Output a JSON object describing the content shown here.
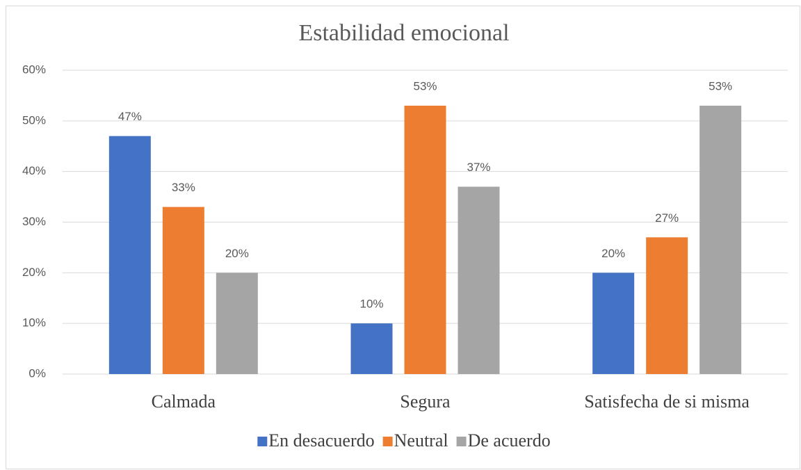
{
  "chart_data": {
    "type": "bar",
    "title": "Estabilidad emocional",
    "categories": [
      "Calmada",
      "Segura",
      "Satisfecha de si misma"
    ],
    "series": [
      {
        "name": "En desacuerdo",
        "color": "#4472c4",
        "values": [
          47,
          10,
          20
        ],
        "value_labels": [
          "47%",
          "10%",
          "20%"
        ]
      },
      {
        "name": "Neutral",
        "color": "#ed7d31",
        "values": [
          33,
          53,
          27
        ],
        "value_labels": [
          "33%",
          "53%",
          "27%"
        ]
      },
      {
        "name": "De acuerdo",
        "color": "#a5a5a5",
        "values": [
          20,
          37,
          53
        ],
        "value_labels": [
          "20%",
          "37%",
          "53%"
        ]
      }
    ],
    "ylim": [
      0,
      60
    ],
    "yticks": [
      {
        "value": 0,
        "label": "0%"
      },
      {
        "value": 10,
        "label": "10%"
      },
      {
        "value": 20,
        "label": "20%"
      },
      {
        "value": 30,
        "label": "30%"
      },
      {
        "value": 40,
        "label": "40%"
      },
      {
        "value": 50,
        "label": "50%"
      },
      {
        "value": 60,
        "label": "60%"
      }
    ],
    "grid": true,
    "legend": "bottom"
  }
}
